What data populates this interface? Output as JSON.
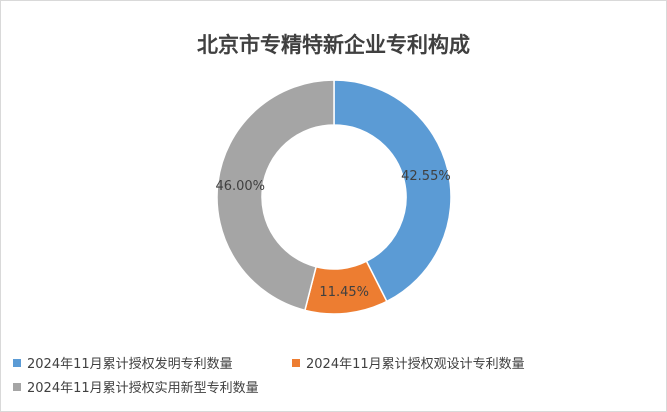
{
  "chart_data": {
    "type": "pie",
    "donut": true,
    "title": "北京市专精特新企业专利构成",
    "series": [
      {
        "name": "2024年11月累计授权发明专利数量",
        "value": 42.55,
        "label": "42.55%",
        "color": "#5B9BD5"
      },
      {
        "name": "2024年11月累计授权观设计专利数量",
        "value": 11.45,
        "label": "11.45%",
        "color": "#ED7D31"
      },
      {
        "name": "2024年11月累计授权实用新型专利数量",
        "value": 46.0,
        "label": "46.00%",
        "color": "#A5A5A5"
      }
    ],
    "legend_position": "bottom"
  }
}
